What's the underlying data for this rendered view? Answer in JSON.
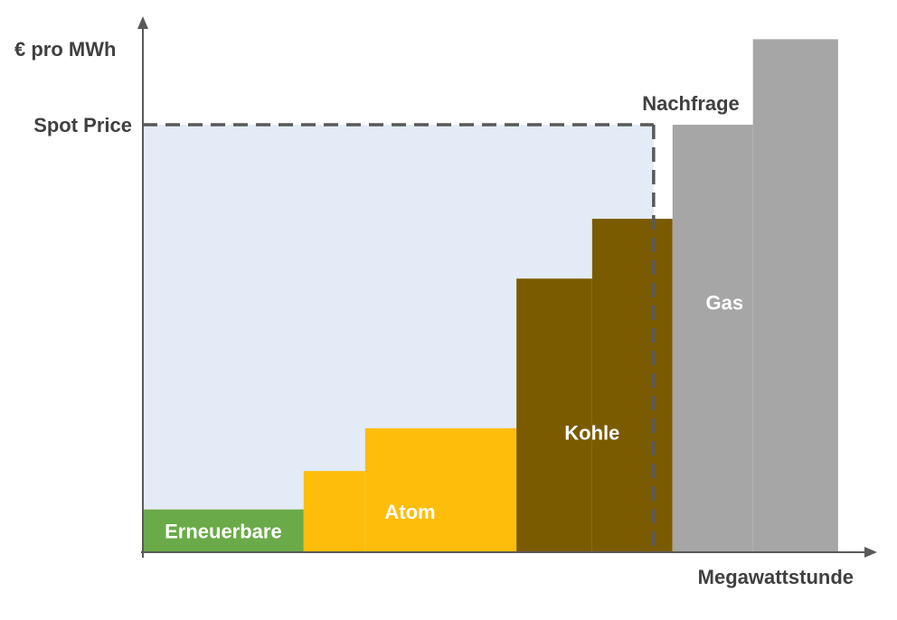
{
  "chart_data": {
    "type": "bar",
    "subtype": "merit-order-step",
    "ylabel": "€ pro MWh",
    "xlabel": "Megawattstunde",
    "ylim": [
      0,
      12.5
    ],
    "xlim": [
      0,
      13.7
    ],
    "grid": false,
    "spot_price": {
      "label": "Spot Price",
      "value": 10
    },
    "demand": {
      "label": "Nachfrage",
      "value": 10.8
    },
    "consumer_area_color": "#e3ebf7",
    "series": [
      {
        "name": "Erneuerbare",
        "color": "#6aaa49",
        "label_color": "#ffffff",
        "steps": [
          {
            "x0": 0,
            "x1": 3.4,
            "y": 1.0
          }
        ]
      },
      {
        "name": "Atom",
        "color": "#fdbd0a",
        "label_color": "#ffffff",
        "steps": [
          {
            "x0": 3.4,
            "x1": 4.7,
            "y": 1.9
          },
          {
            "x0": 4.7,
            "x1": 7.9,
            "y": 2.9
          }
        ]
      },
      {
        "name": "Kohle",
        "color": "#7b5b00",
        "label_color": "#ffffff",
        "steps": [
          {
            "x0": 7.9,
            "x1": 9.5,
            "y": 6.4
          },
          {
            "x0": 9.5,
            "x1": 11.2,
            "y": 7.8
          }
        ]
      },
      {
        "name": "Gas",
        "color": "#a6a6a6",
        "label_color": "#ffffff",
        "steps": [
          {
            "x0": 11.2,
            "x1": 12.9,
            "y": 10.0
          },
          {
            "x0": 12.9,
            "x1": 14.7,
            "y": 12.0
          }
        ]
      }
    ],
    "axis_color": "#595959",
    "text_color": "#404040"
  }
}
